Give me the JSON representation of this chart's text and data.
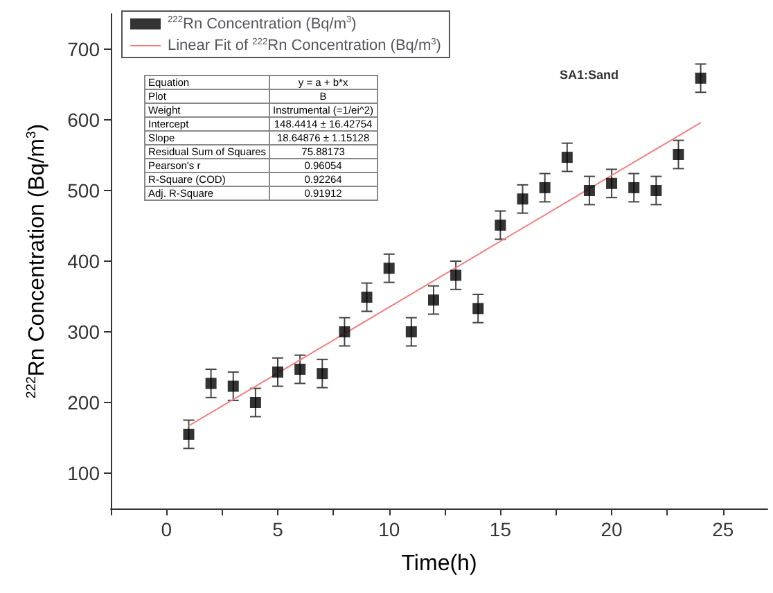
{
  "chart_data": {
    "type": "scatter",
    "xlabel": "Time(h)",
    "ylabel": "$^{222}$Rn Concentration (Bq/m$^{3}$)",
    "xlim": [
      -2.5,
      27
    ],
    "xticks": [
      {
        "value": -2.5,
        "label": null
      },
      0,
      {
        "value": 2.5,
        "label": null
      },
      5,
      {
        "value": 7.5,
        "label": null
      },
      10,
      {
        "value": 12.5,
        "label": null
      },
      15,
      {
        "value": 17.5,
        "label": null
      },
      20,
      {
        "value": 22.5,
        "label": null
      },
      25
    ],
    "ylim": [
      50,
      750
    ],
    "yticks": [
      100,
      200,
      300,
      400,
      500,
      600,
      700
    ],
    "grid": false,
    "legend": "top left",
    "marker": "square",
    "series": [
      {
        "name": "$^{222}$Rn Concentration (Bq/m$^{3}$)",
        "color": "#000000",
        "x": [
          1,
          2,
          3,
          4,
          5,
          6,
          7,
          8,
          9,
          10,
          11,
          12,
          13,
          14,
          15,
          16,
          17,
          18,
          19,
          20,
          21,
          22,
          23,
          24
        ],
        "values": [
          155,
          227,
          223,
          200,
          243,
          247,
          241,
          300,
          349,
          390,
          300,
          345,
          380,
          333,
          451,
          488,
          504,
          547,
          500,
          510,
          504,
          500,
          551,
          659
        ],
        "errors": [
          20,
          20,
          20,
          20,
          20,
          20,
          20,
          20,
          20,
          20,
          20,
          20,
          20,
          20,
          20,
          20,
          20,
          20,
          20,
          20,
          20,
          20,
          20,
          20
        ]
      },
      {
        "type": "line",
        "name": "Linear Fit of $^{222}$Rn Concentration (Bq/m$^{3}$)",
        "color": "#f08080",
        "line_style": "solid",
        "marker": "none",
        "x": [
          1,
          24
        ],
        "values": [
          167,
          596
        ]
      }
    ],
    "annotations": [
      "SA1:Sand",
      "Equation",
      "y = a + b*x",
      "Plot",
      "B",
      "Weight",
      "Instrumental (=1/ei^2)",
      "Intercept",
      "148.4414 ± 16.42754",
      "Slope",
      "18.64876 ± 1.15128",
      "Residual Sum of Squares",
      "75.88173",
      "Pearson's r",
      "0.96054",
      "R-Square (COD)",
      "0.92264",
      "Adj. R-Square",
      "0.91912"
    ]
  }
}
